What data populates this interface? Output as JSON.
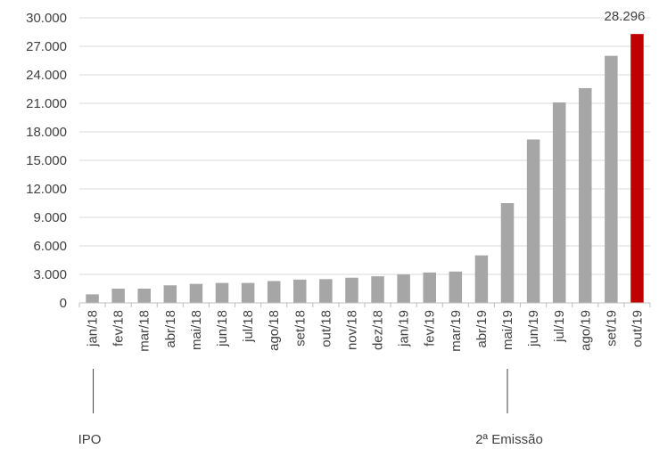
{
  "chart_data": {
    "type": "bar",
    "title": "",
    "xlabel": "",
    "ylabel": "",
    "categories": [
      "jan/18",
      "fev/18",
      "mar/18",
      "abr/18",
      "mai/18",
      "jun/18",
      "jul/18",
      "ago/18",
      "set/18",
      "out/18",
      "nov/18",
      "dez/18",
      "jan/19",
      "fev/19",
      "mar/19",
      "abr/19",
      "mai/19",
      "jun/19",
      "jul/19",
      "ago/19",
      "set/19",
      "out/19"
    ],
    "values": [
      900,
      1500,
      1500,
      1850,
      2000,
      2100,
      2100,
      2300,
      2450,
      2500,
      2650,
      2800,
      3000,
      3200,
      3300,
      5000,
      10500,
      17200,
      21100,
      22600,
      26000,
      28296
    ],
    "ylim": [
      0,
      30000
    ],
    "yticks": [
      0,
      3000,
      6000,
      9000,
      12000,
      15000,
      18000,
      21000,
      24000,
      27000,
      30000
    ],
    "ytick_labels": [
      "0",
      "3.000",
      "6.000",
      "9.000",
      "12.000",
      "15.000",
      "18.000",
      "21.000",
      "24.000",
      "27.000",
      "30.000"
    ],
    "grid": true,
    "colors": {
      "default": "#a6a6a6",
      "highlight": "#c00000",
      "grid": "#d9d9d9",
      "text": "#404040"
    },
    "highlight_index": 21,
    "data_labels": [
      {
        "index": 21,
        "text": "28.296"
      }
    ],
    "annotations": [
      {
        "text": "IPO",
        "category": "jan/18"
      },
      {
        "text": "2ª Emissão",
        "category": "mai/19"
      }
    ]
  }
}
